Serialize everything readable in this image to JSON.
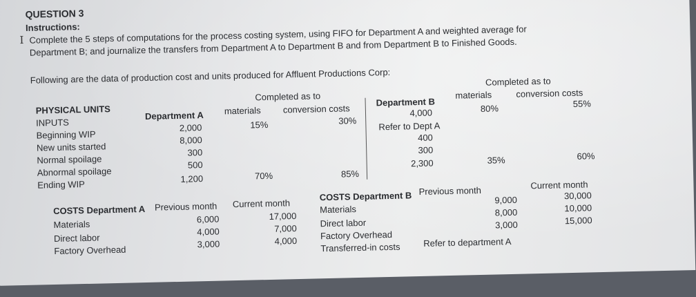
{
  "header": {
    "question": "QUESTION 3",
    "instructions_label": "Instructions:",
    "instructions_line1": "Complete the 5 steps of computations for the process costing system, using FIFO for Department A and weighted average for",
    "instructions_line2": "Department B; and journalize the transfers from Department A to Department B and from Department B to Finished Goods.",
    "intro": "Following are the data of production cost and units produced for Affluent Productions Corp:"
  },
  "physical": {
    "title": "PHYSICAL UNITS",
    "inputs_label": "INPUTS",
    "rows": [
      "Beginning WIP",
      "New units started",
      "Normal spoilage",
      "Abnormal spoilage",
      "Ending WIP"
    ],
    "dept_a_header": "Department A",
    "completed_as_to": "Completed as to",
    "materials": "materials",
    "conversion_costs": "conversion costs",
    "dept_a_units": [
      "2,000",
      "8,000",
      "300",
      "500",
      "1,200"
    ],
    "dept_a_begin_mat": "15%",
    "dept_a_begin_conv": "30%",
    "dept_a_end_mat": "70%",
    "dept_a_end_conv": "85%",
    "dept_b_header": "Department B",
    "dept_b_units": [
      "4,000",
      "Refer to Dept A",
      "400",
      "300",
      "2,300"
    ],
    "dept_b_begin_mat": "80%",
    "dept_b_begin_conv": "55%",
    "dept_b_end_mat": "35%",
    "dept_b_end_conv": "60%"
  },
  "costs_a": {
    "title": "COSTS Department A",
    "previous_month": "Previous month",
    "current_month": "Current month",
    "rows": [
      "Materials",
      "Direct labor",
      "Factory Overhead"
    ],
    "previous": [
      "6,000",
      "4,000",
      "3,000"
    ],
    "current": [
      "17,000",
      "7,000",
      "4,000"
    ]
  },
  "costs_b": {
    "title": "COSTS Department B",
    "previous_month": "Previous month",
    "current_month": "Current month",
    "rows": [
      "Materials",
      "Direct labor",
      "Factory Overhead",
      "Transferred-in costs"
    ],
    "previous": [
      "9,000",
      "8,000",
      "3,000",
      "Refer to department A"
    ],
    "current": [
      "30,000",
      "10,000",
      "15,000"
    ]
  },
  "icons": {
    "cursor": "text-cursor-icon"
  }
}
